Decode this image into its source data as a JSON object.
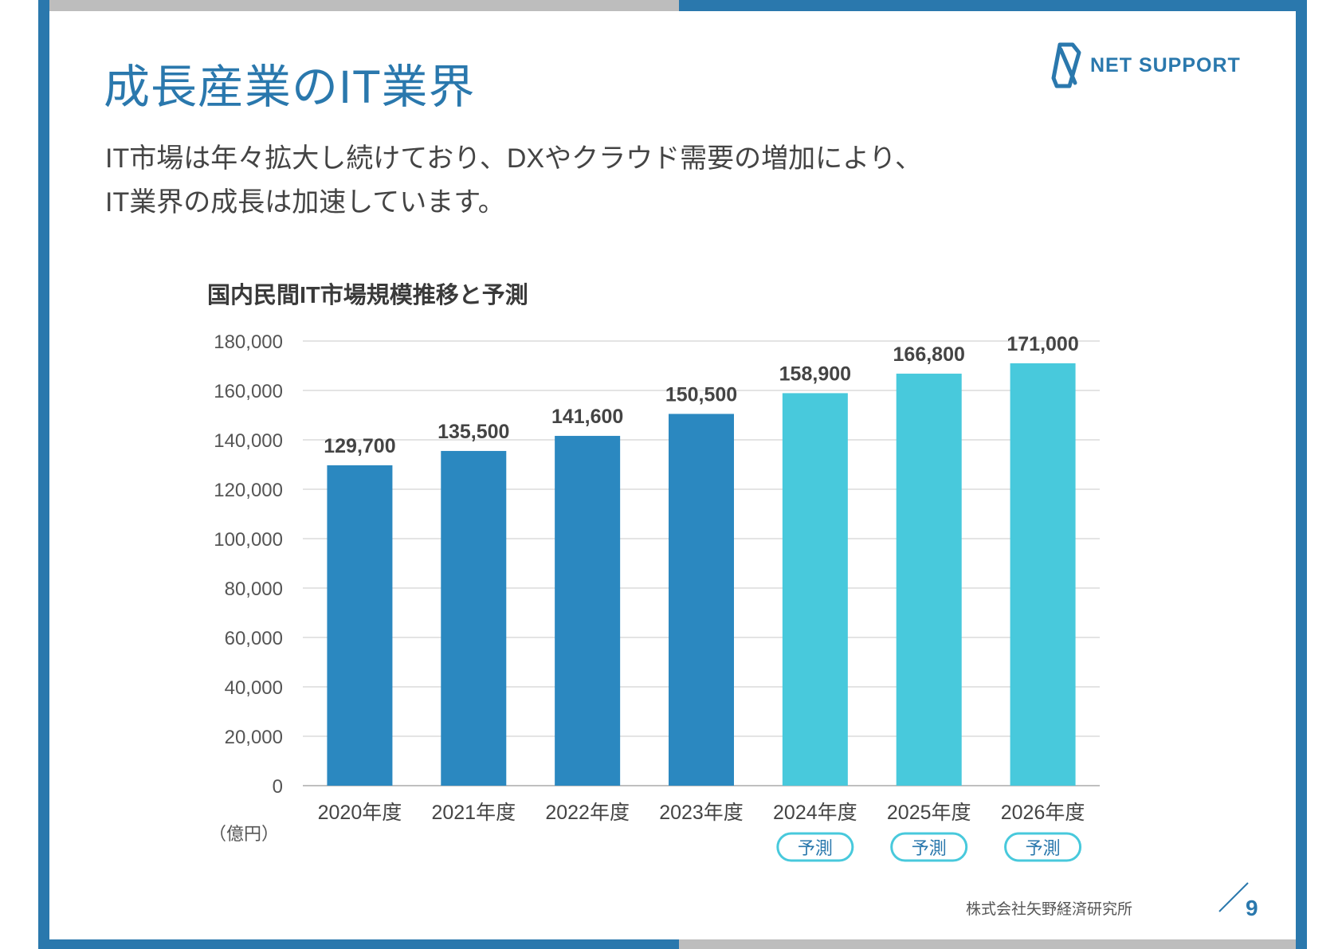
{
  "header": {
    "title": "成長産業のIT業界",
    "logo_text": "NET SUPPORT"
  },
  "lead": {
    "line1": "IT市場は年々拡大し続けており、DXやクラウド需要の増加により、",
    "line2": "IT業界の成長は加速しています。"
  },
  "footer": {
    "source": "株式会社矢野経済研究所",
    "page_number": "9"
  },
  "colors": {
    "actual": "#2b88c0",
    "forecast": "#48c9dc",
    "accent": "#2a78ad"
  },
  "chart_data": {
    "type": "bar",
    "title": "国内民間IT市場規模推移と予測",
    "categories": [
      "2020年度",
      "2021年度",
      "2022年度",
      "2023年度",
      "2024年度",
      "2025年度",
      "2026年度"
    ],
    "values": [
      129700,
      135500,
      141600,
      150500,
      158900,
      166800,
      171000
    ],
    "value_labels": [
      "129,700",
      "135,500",
      "141,600",
      "150,500",
      "158,900",
      "166,800",
      "171,000"
    ],
    "forecast": [
      false,
      false,
      false,
      false,
      true,
      true,
      true
    ],
    "forecast_label": "予測",
    "ylim": [
      0,
      180000
    ],
    "yticks": [
      0,
      20000,
      40000,
      60000,
      80000,
      100000,
      120000,
      140000,
      160000,
      180000
    ],
    "ytick_labels": [
      "0",
      "20,000",
      "40,000",
      "60,000",
      "80,000",
      "100,000",
      "120,000",
      "140,000",
      "160,000",
      "180,000"
    ],
    "unit_label": "（億円）",
    "xlabel": "",
    "ylabel": "",
    "grid": true,
    "legend": "none"
  }
}
